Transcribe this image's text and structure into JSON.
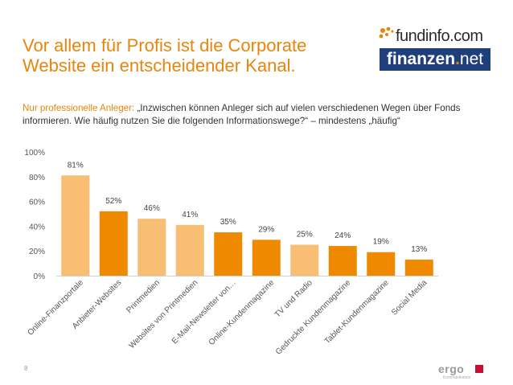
{
  "slide": {
    "title_line1": "Vor allem für Profis ist die Corporate",
    "title_line2": "Website ein entscheidender Kanal.",
    "subtitle_lead": "Nur professionelle Anleger:",
    "subtitle_text": " „Inzwischen können Anleger sich auf vielen verschiedenen Wegen über Fonds informieren. Wie häufig nutzen Sie die folgenden Informationswege?“ – mindestens „häufig“",
    "page_number": "8"
  },
  "logos": {
    "fundinfo": "fundinfo.com",
    "finanzen_main": "finanzen",
    "finanzen_dot": ".",
    "finanzen_net": "net",
    "ergo": "ergo",
    "ergo_tagline": "Kommunikation"
  },
  "colors": {
    "accent": "#e8850c",
    "bar_dark": "#ee8900",
    "bar_light": "#f7be74",
    "navy": "#1f3f7a"
  },
  "chart_data": {
    "type": "bar",
    "title": "",
    "xlabel": "",
    "ylabel": "",
    "ylim": [
      0,
      100
    ],
    "yticks": [
      "0%",
      "20%",
      "40%",
      "60%",
      "80%",
      "100%"
    ],
    "grid": false,
    "categories": [
      "Online-Finanzportale",
      "Anbieter-Websites",
      "Printmedien",
      "Websites von Printmedien",
      "E-Mail-Newsletter von…",
      "Online-Kundenmagazine",
      "TV und Radio",
      "Gedruckte Kundenmagazine",
      "Tablet-Kundenmagazine",
      "Social Media"
    ],
    "values": [
      81,
      52,
      46,
      41,
      35,
      29,
      25,
      24,
      19,
      13
    ],
    "labels": [
      "81%",
      "52%",
      "46%",
      "41%",
      "35%",
      "29%",
      "25%",
      "24%",
      "19%",
      "13%"
    ],
    "shades": [
      "light",
      "dark",
      "light",
      "light",
      "dark",
      "dark",
      "light",
      "dark",
      "dark",
      "dark"
    ]
  }
}
